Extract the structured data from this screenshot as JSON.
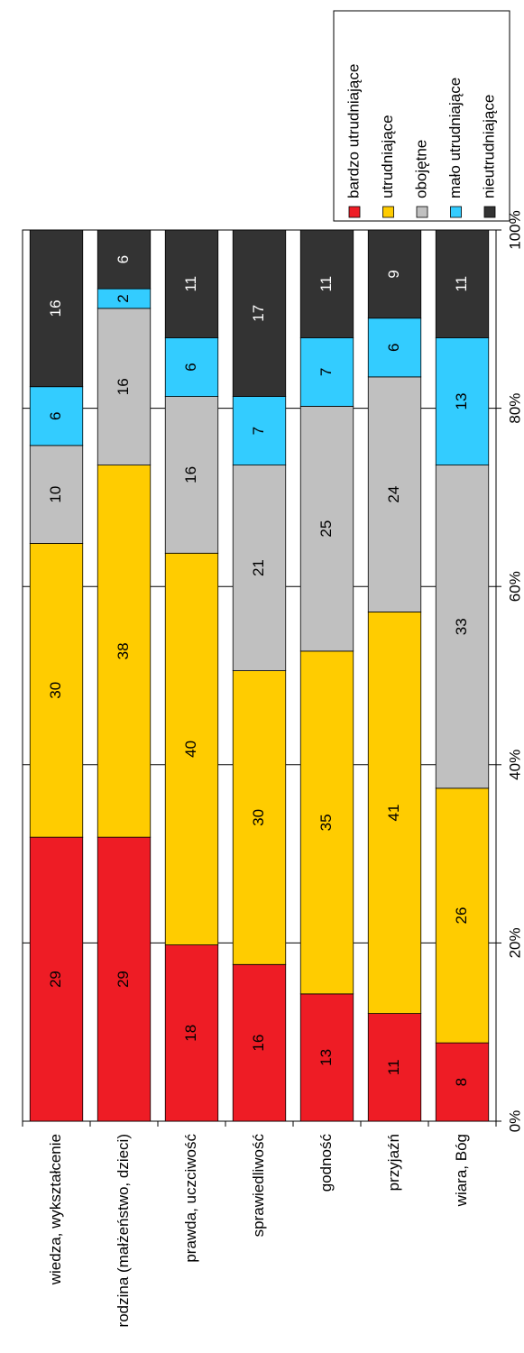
{
  "chart_data": {
    "type": "percent_stacked_bar",
    "categories": [
      "wiedza, wykształcenie",
      "rodzina (małżeństwo, dzieci)",
      "prawda, uczciwość",
      "sprawiedliwość",
      "godność",
      "przyjaźń",
      "wiara, Bóg"
    ],
    "series": [
      {
        "name": "bardzo utrudniające",
        "color": "#ee1c25",
        "values": [
          29,
          29,
          18,
          16,
          13,
          11,
          8
        ]
      },
      {
        "name": "utrudniające",
        "color": "#ffcc00",
        "values": [
          30,
          38,
          40,
          30,
          35,
          41,
          26
        ]
      },
      {
        "name": "obojętne",
        "color": "#c0c0c0",
        "values": [
          10,
          16,
          16,
          21,
          25,
          24,
          33
        ]
      },
      {
        "name": "mało utrudniające",
        "color": "#33ccff",
        "values": [
          6,
          2,
          6,
          7,
          7,
          6,
          13
        ]
      },
      {
        "name": "nieutrudniające",
        "color": "#333333",
        "values": [
          16,
          6,
          11,
          17,
          11,
          9,
          11
        ]
      }
    ],
    "xlim": [
      0,
      100
    ],
    "xticks": [
      {
        "value": 0,
        "label": "0%"
      },
      {
        "value": 20,
        "label": "20%"
      },
      {
        "value": 40,
        "label": "40%"
      },
      {
        "value": 60,
        "label": "60%"
      },
      {
        "value": 80,
        "label": "80%"
      },
      {
        "value": 100,
        "label": "100%"
      }
    ],
    "grid": true
  }
}
